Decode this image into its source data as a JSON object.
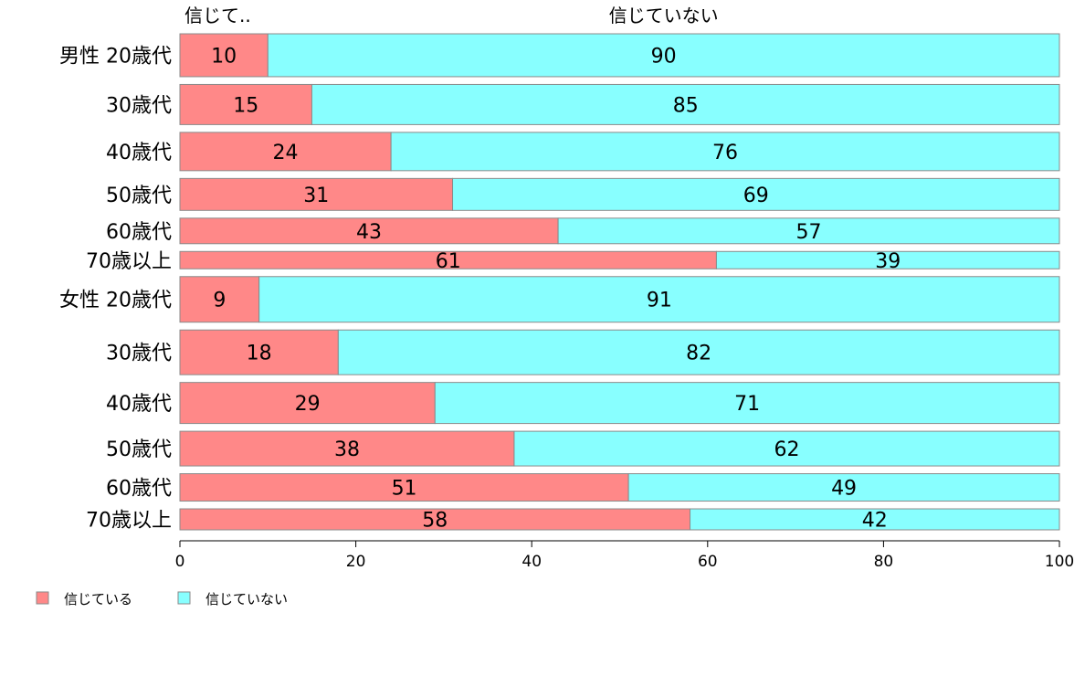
{
  "chart_data": {
    "type": "bar",
    "orientation": "horizontal-stacked-percent",
    "top_labels": [
      "信じて..",
      "信じていない"
    ],
    "categories": [
      "男性 20歳代",
      "30歳代",
      "40歳代",
      "50歳代",
      "60歳代",
      "70歳以上",
      "女性 20歳代",
      "30歳代",
      "40歳代",
      "50歳代",
      "60歳代",
      "70歳以上"
    ],
    "relative_sample_size": [
      47,
      44,
      42,
      35,
      28,
      19,
      50,
      49,
      45,
      38,
      30,
      23
    ],
    "series": [
      {
        "name": "信じている",
        "color": "#FF8888",
        "values": [
          10,
          15,
          24,
          31,
          43,
          61,
          9,
          18,
          29,
          38,
          51,
          58
        ]
      },
      {
        "name": "信じていない",
        "color": "#88FFFF",
        "values": [
          90,
          85,
          76,
          69,
          57,
          39,
          91,
          82,
          71,
          62,
          49,
          42
        ]
      }
    ],
    "xlim": [
      0,
      100
    ],
    "xticks": [
      "0",
      "20",
      "40",
      "60",
      "80",
      "100"
    ],
    "legend_position": "bottom-left",
    "grid": false
  }
}
